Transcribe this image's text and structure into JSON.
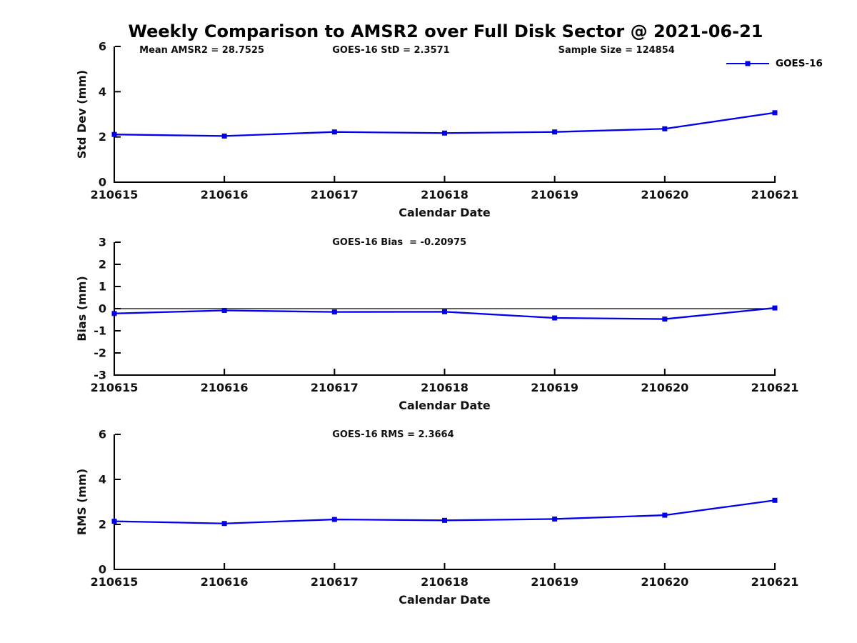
{
  "title": "Weekly Comparison to AMSR2 over Full Disk Sector @ 2021-06-21",
  "accent_color": "#0000EE",
  "chart_data": [
    {
      "type": "line",
      "id": "std-dev",
      "ylabel": "Std Dev (mm)",
      "xlabel": "Calendar Date",
      "ylim": [
        0,
        6
      ],
      "yticks": [
        0,
        2,
        4,
        6
      ],
      "grid": false,
      "categories": [
        "210615",
        "210616",
        "210617",
        "210618",
        "210619",
        "210620",
        "210621"
      ],
      "series": [
        {
          "name": "GOES-16",
          "color": "#0000EE",
          "marker": "square",
          "values": [
            2.11,
            2.04,
            2.22,
            2.17,
            2.22,
            2.36,
            3.07
          ]
        }
      ],
      "annotations": [
        "Mean AMSR2 = 28.7525",
        "GOES-16 StD = 2.3571",
        "Sample Size = 124854"
      ],
      "legend": {
        "label": "GOES-16",
        "position": "top-right"
      }
    },
    {
      "type": "line",
      "id": "bias",
      "ylabel": "Bias (mm)",
      "xlabel": "Calendar Date",
      "ylim": [
        -3,
        3
      ],
      "yticks": [
        -3,
        -2,
        -1,
        0,
        1,
        2,
        3
      ],
      "zero_line": true,
      "grid": false,
      "categories": [
        "210615",
        "210616",
        "210617",
        "210618",
        "210619",
        "210620",
        "210621"
      ],
      "series": [
        {
          "name": "GOES-16",
          "color": "#0000EE",
          "marker": "square",
          "values": [
            -0.22,
            -0.08,
            -0.15,
            -0.14,
            -0.42,
            -0.47,
            0.03
          ]
        }
      ],
      "annotations": [
        "GOES-16 Bias  = -0.20975"
      ]
    },
    {
      "type": "line",
      "id": "rms",
      "ylabel": "RMS (mm)",
      "xlabel": "Calendar Date",
      "ylim": [
        0,
        6
      ],
      "yticks": [
        0,
        2,
        4,
        6
      ],
      "grid": false,
      "categories": [
        "210615",
        "210616",
        "210617",
        "210618",
        "210619",
        "210620",
        "210621"
      ],
      "series": [
        {
          "name": "GOES-16",
          "color": "#0000EE",
          "marker": "square",
          "values": [
            2.14,
            2.04,
            2.22,
            2.18,
            2.24,
            2.41,
            3.07
          ]
        }
      ],
      "annotations": [
        "GOES-16 RMS = 2.3664"
      ]
    }
  ]
}
